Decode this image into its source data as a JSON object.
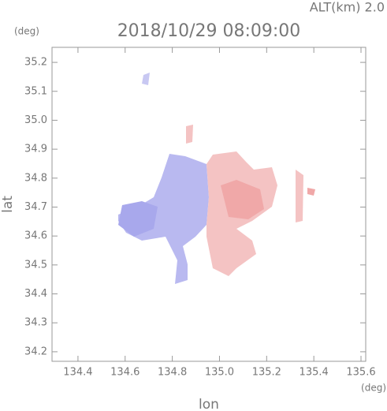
{
  "chart_data": {
    "type": "image",
    "title": "2018/10/29 08:09:00",
    "subtitle": "ALT(km) 2.0",
    "y_unit": "(deg)",
    "x_unit": "(deg)",
    "xlabel": "lon",
    "ylabel": "lat",
    "xlim": [
      134.29,
      135.62
    ],
    "ylim": [
      34.167,
      35.252
    ],
    "xticks": [
      134.4,
      134.6,
      134.8,
      {
        "value": 135.0,
        "label": "135.0"
      },
      135.2,
      135.4,
      135.6
    ],
    "yticks": [
      34.2,
      34.3,
      34.4,
      34.5,
      34.6,
      34.7,
      34.8,
      34.9,
      {
        "value": 35.0,
        "label": "35.0"
      },
      35.1,
      35.2
    ]
  }
}
